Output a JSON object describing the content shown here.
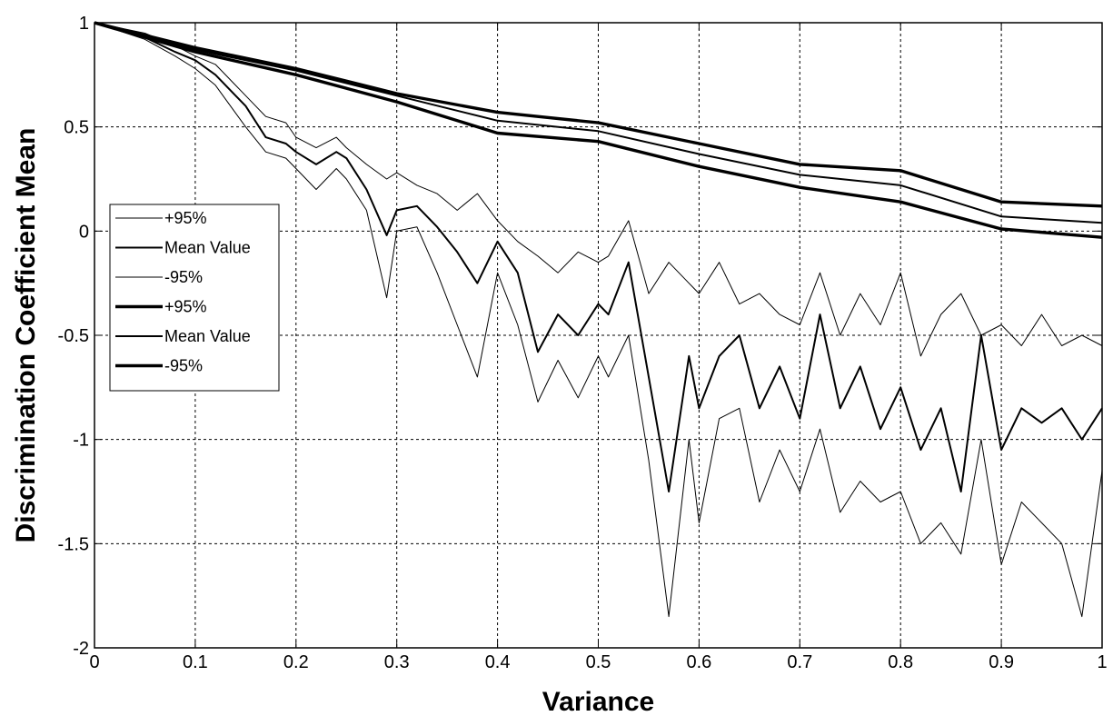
{
  "chart_data": {
    "type": "line",
    "title": "",
    "xlabel": "Variance",
    "ylabel": "Discrimination Coefficient Mean",
    "xlim": [
      0,
      1
    ],
    "ylim": [
      -2,
      1
    ],
    "xticks": [
      0,
      0.1,
      0.2,
      0.3,
      0.4,
      0.5,
      0.6,
      0.7,
      0.8,
      0.9,
      1
    ],
    "xtick_labels": [
      "0",
      "0.1",
      "0.2",
      "0.3",
      "0.4",
      "0.5",
      "0.6",
      "0.7",
      "0.8",
      "0.9",
      "1"
    ],
    "yticks": [
      -2,
      -1.5,
      -1,
      -0.5,
      0,
      0.5,
      1
    ],
    "ytick_labels": [
      "-2",
      "-1.5",
      "-1",
      "-0.5",
      "0",
      "0.5",
      "1"
    ],
    "grid": true,
    "legend_position": "center-left",
    "series": [
      {
        "name": "+95%",
        "color": "#000000",
        "line_weight": "thin",
        "x": [
          0,
          0.05,
          0.08,
          0.1,
          0.12,
          0.15,
          0.17,
          0.19,
          0.2,
          0.22,
          0.24,
          0.25,
          0.27,
          0.29,
          0.3,
          0.32,
          0.34,
          0.36,
          0.38,
          0.4,
          0.42,
          0.44,
          0.46,
          0.48,
          0.5,
          0.51,
          0.53,
          0.55,
          0.57,
          0.59,
          0.6,
          0.62,
          0.64,
          0.66,
          0.68,
          0.7,
          0.72,
          0.74,
          0.76,
          0.78,
          0.8,
          0.82,
          0.84,
          0.86,
          0.88,
          0.9,
          0.92,
          0.94,
          0.96,
          0.98,
          1
        ],
        "values": [
          1,
          0.95,
          0.89,
          0.84,
          0.8,
          0.65,
          0.55,
          0.52,
          0.45,
          0.4,
          0.45,
          0.4,
          0.32,
          0.25,
          0.28,
          0.22,
          0.18,
          0.1,
          0.18,
          0.05,
          -0.05,
          -0.12,
          -0.2,
          -0.1,
          -0.15,
          -0.12,
          0.05,
          -0.3,
          -0.15,
          -0.25,
          -0.3,
          -0.15,
          -0.35,
          -0.3,
          -0.4,
          -0.45,
          -0.2,
          -0.5,
          -0.3,
          -0.45,
          -0.2,
          -0.6,
          -0.4,
          -0.3,
          -0.5,
          -0.45,
          -0.55,
          -0.4,
          -0.55,
          -0.5,
          -0.55
        ]
      },
      {
        "name": "Mean Value",
        "color": "#000000",
        "line_weight": "medium",
        "x": [
          0,
          0.05,
          0.08,
          0.1,
          0.12,
          0.15,
          0.17,
          0.19,
          0.2,
          0.22,
          0.24,
          0.25,
          0.27,
          0.29,
          0.3,
          0.32,
          0.34,
          0.36,
          0.38,
          0.4,
          0.42,
          0.44,
          0.46,
          0.48,
          0.5,
          0.51,
          0.53,
          0.55,
          0.57,
          0.59,
          0.6,
          0.62,
          0.64,
          0.66,
          0.68,
          0.7,
          0.72,
          0.74,
          0.76,
          0.78,
          0.8,
          0.82,
          0.84,
          0.86,
          0.88,
          0.9,
          0.92,
          0.94,
          0.96,
          0.98,
          1
        ],
        "values": [
          1,
          0.93,
          0.86,
          0.82,
          0.75,
          0.6,
          0.45,
          0.42,
          0.38,
          0.32,
          0.38,
          0.35,
          0.2,
          -0.02,
          0.1,
          0.12,
          0.02,
          -0.1,
          -0.25,
          -0.05,
          -0.2,
          -0.58,
          -0.4,
          -0.5,
          -0.35,
          -0.4,
          -0.15,
          -0.7,
          -1.25,
          -0.6,
          -0.85,
          -0.6,
          -0.5,
          -0.85,
          -0.65,
          -0.9,
          -0.4,
          -0.85,
          -0.65,
          -0.95,
          -0.75,
          -1.05,
          -0.85,
          -1.25,
          -0.5,
          -1.05,
          -0.85,
          -0.92,
          -0.85,
          -1.0,
          -0.85
        ]
      },
      {
        "name": "-95%",
        "color": "#000000",
        "line_weight": "thin",
        "x": [
          0,
          0.05,
          0.08,
          0.1,
          0.12,
          0.15,
          0.17,
          0.19,
          0.2,
          0.22,
          0.24,
          0.25,
          0.27,
          0.29,
          0.3,
          0.32,
          0.34,
          0.36,
          0.38,
          0.4,
          0.42,
          0.44,
          0.46,
          0.48,
          0.5,
          0.51,
          0.53,
          0.55,
          0.57,
          0.59,
          0.6,
          0.62,
          0.64,
          0.66,
          0.68,
          0.7,
          0.72,
          0.74,
          0.76,
          0.78,
          0.8,
          0.82,
          0.84,
          0.86,
          0.88,
          0.9,
          0.92,
          0.94,
          0.96,
          0.98,
          1
        ],
        "values": [
          1,
          0.92,
          0.84,
          0.78,
          0.7,
          0.5,
          0.38,
          0.35,
          0.3,
          0.2,
          0.3,
          0.25,
          0.1,
          -0.32,
          0.0,
          0.02,
          -0.2,
          -0.45,
          -0.7,
          -0.2,
          -0.45,
          -0.82,
          -0.62,
          -0.8,
          -0.6,
          -0.7,
          -0.5,
          -1.1,
          -1.85,
          -1.0,
          -1.4,
          -0.9,
          -0.85,
          -1.3,
          -1.05,
          -1.25,
          -0.95,
          -1.35,
          -1.2,
          -1.3,
          -1.25,
          -1.5,
          -1.4,
          -1.55,
          -1.0,
          -1.6,
          -1.3,
          -1.4,
          -1.5,
          -1.85,
          -1.15
        ]
      },
      {
        "name": "+95%",
        "color": "#000000",
        "line_weight": "thick",
        "x": [
          0,
          0.1,
          0.2,
          0.3,
          0.4,
          0.5,
          0.6,
          0.7,
          0.8,
          0.9,
          1
        ],
        "values": [
          1,
          0.88,
          0.78,
          0.66,
          0.57,
          0.52,
          0.42,
          0.32,
          0.29,
          0.14,
          0.12
        ]
      },
      {
        "name": "Mean Value",
        "color": "#000000",
        "line_weight": "medium",
        "x": [
          0,
          0.1,
          0.2,
          0.3,
          0.4,
          0.5,
          0.6,
          0.7,
          0.8,
          0.9,
          1
        ],
        "values": [
          1,
          0.87,
          0.77,
          0.65,
          0.53,
          0.48,
          0.37,
          0.27,
          0.22,
          0.07,
          0.04
        ]
      },
      {
        "name": "-95%",
        "color": "#000000",
        "line_weight": "thick",
        "x": [
          0,
          0.1,
          0.2,
          0.3,
          0.4,
          0.5,
          0.6,
          0.7,
          0.8,
          0.9,
          1
        ],
        "values": [
          1,
          0.86,
          0.75,
          0.62,
          0.47,
          0.43,
          0.31,
          0.21,
          0.14,
          0.01,
          -0.03
        ]
      }
    ]
  }
}
